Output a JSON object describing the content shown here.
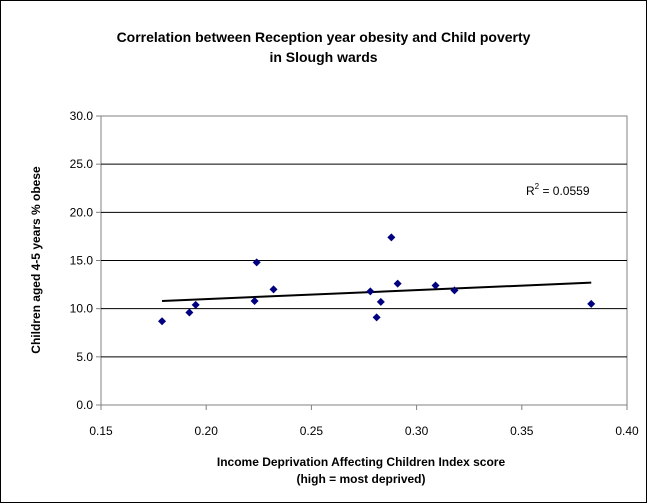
{
  "chart_data": {
    "type": "scatter",
    "title_lines": [
      "Correlation between Reception year obesity and Child poverty",
      "in Slough wards"
    ],
    "xlabel_lines": [
      "Income Deprivation Affecting Children Index score",
      "(high = most deprived)"
    ],
    "ylabel": "Children aged 4-5 years % obese",
    "xlim": [
      0.15,
      0.4
    ],
    "ylim": [
      0.0,
      30.0
    ],
    "x_ticks": [
      "0.15",
      "0.20",
      "0.25",
      "0.30",
      "0.35",
      "0.40"
    ],
    "y_ticks": [
      "0.0",
      "5.0",
      "10.0",
      "15.0",
      "20.0",
      "25.0",
      "30.0"
    ],
    "grid": "horizontal",
    "marker_color": "#000080",
    "points": [
      {
        "x": 0.179,
        "y": 8.7
      },
      {
        "x": 0.192,
        "y": 9.6
      },
      {
        "x": 0.195,
        "y": 10.4
      },
      {
        "x": 0.223,
        "y": 10.8
      },
      {
        "x": 0.224,
        "y": 14.8
      },
      {
        "x": 0.232,
        "y": 12.0
      },
      {
        "x": 0.278,
        "y": 11.8
      },
      {
        "x": 0.281,
        "y": 9.1
      },
      {
        "x": 0.283,
        "y": 10.7
      },
      {
        "x": 0.288,
        "y": 17.4
      },
      {
        "x": 0.291,
        "y": 12.6
      },
      {
        "x": 0.309,
        "y": 12.4
      },
      {
        "x": 0.318,
        "y": 11.9
      },
      {
        "x": 0.383,
        "y": 10.5
      }
    ],
    "trendline": {
      "x": [
        0.179,
        0.383
      ],
      "y": [
        10.8,
        12.7
      ]
    },
    "annotation": {
      "prefix": "R",
      "sup": "2",
      "suffix": " = 0.0559"
    }
  }
}
